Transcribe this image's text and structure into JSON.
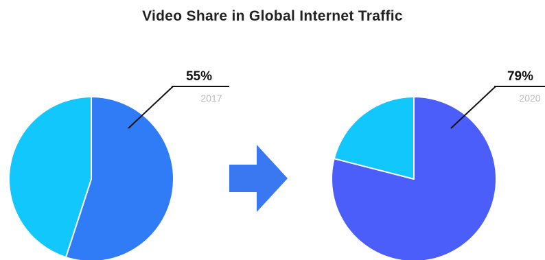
{
  "chart_data": {
    "title": "Video Share in Global Internet Traffic",
    "type": "pie",
    "charts": [
      {
        "year_label": "2017",
        "value_label": "55%",
        "slices": [
          {
            "value": 55,
            "color": "#2f7cf6"
          },
          {
            "value": 45,
            "color": "#12c7fb"
          }
        ]
      },
      {
        "year_label": "2020",
        "value_label": "79%",
        "slices": [
          {
            "value": 79,
            "color": "#4b5ef9"
          },
          {
            "value": 21,
            "color": "#12c7fb"
          }
        ]
      }
    ]
  },
  "colors": {
    "arrow": "#3a78f2",
    "leader_line": "#111111",
    "separator": "#ffffff"
  },
  "icons": {
    "transition": "right-arrow-icon"
  }
}
